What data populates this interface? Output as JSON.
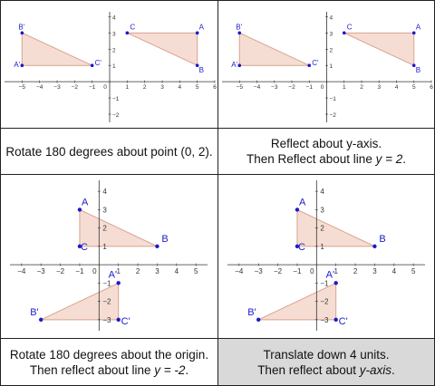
{
  "panels": [
    {
      "id": "p1",
      "xrange": [
        -6,
        6
      ],
      "yrange": [
        -2.5,
        4.3
      ],
      "xticks": [
        -5,
        -4,
        -3,
        -2,
        -1,
        0,
        1,
        2,
        3,
        4,
        5,
        6
      ],
      "yticks": [
        -2,
        -1,
        0,
        1,
        2,
        3,
        4
      ],
      "triangles": [
        {
          "name": "image",
          "points": [
            {
              "label": "B'",
              "x": -5,
              "y": 3
            },
            {
              "label": "A'",
              "x": -5,
              "y": 1
            },
            {
              "label": "C'",
              "x": -1,
              "y": 1
            }
          ]
        },
        {
          "name": "original",
          "points": [
            {
              "label": "C",
              "x": 1,
              "y": 3
            },
            {
              "label": "A",
              "x": 5,
              "y": 3
            },
            {
              "label": "B",
              "x": 5,
              "y": 1
            }
          ]
        }
      ]
    },
    {
      "id": "p2",
      "xrange": [
        -6,
        6
      ],
      "yrange": [
        -2.5,
        4.3
      ],
      "xticks": [
        -5,
        -4,
        -3,
        -2,
        -1,
        0,
        1,
        2,
        3,
        4,
        5,
        6
      ],
      "yticks": [
        -2,
        -1,
        0,
        1,
        2,
        3,
        4
      ],
      "triangles": [
        {
          "name": "image",
          "points": [
            {
              "label": "B'",
              "x": -5,
              "y": 3
            },
            {
              "label": "A'",
              "x": -5,
              "y": 1
            },
            {
              "label": "C'",
              "x": -1,
              "y": 1
            }
          ]
        },
        {
          "name": "original",
          "points": [
            {
              "label": "C",
              "x": 1,
              "y": 3
            },
            {
              "label": "A",
              "x": 5,
              "y": 3
            },
            {
              "label": "B",
              "x": 5,
              "y": 1
            }
          ]
        }
      ]
    },
    {
      "id": "p3",
      "xrange": [
        -4.6,
        5.6
      ],
      "yrange": [
        -3.6,
        4.6
      ],
      "xticks": [
        -4,
        -3,
        -2,
        -1,
        0,
        1,
        2,
        3,
        4,
        5
      ],
      "yticks": [
        -3,
        -2,
        -1,
        0,
        1,
        2,
        3,
        4
      ],
      "triangles": [
        {
          "name": "original",
          "points": [
            {
              "label": "A",
              "x": -1,
              "y": 3
            },
            {
              "label": "C",
              "x": -1,
              "y": 1
            },
            {
              "label": "B",
              "x": 3,
              "y": 1
            }
          ]
        },
        {
          "name": "image",
          "points": [
            {
              "label": "A'",
              "x": 1,
              "y": -1
            },
            {
              "label": "C'",
              "x": 1,
              "y": -3
            },
            {
              "label": "B'",
              "x": -3,
              "y": -3
            }
          ]
        }
      ]
    },
    {
      "id": "p4",
      "xrange": [
        -4.6,
        5.6
      ],
      "yrange": [
        -3.6,
        4.6
      ],
      "xticks": [
        -4,
        -3,
        -2,
        -1,
        0,
        1,
        2,
        3,
        4,
        5
      ],
      "yticks": [
        -3,
        -2,
        -1,
        0,
        1,
        2,
        3,
        4
      ],
      "triangles": [
        {
          "name": "original",
          "points": [
            {
              "label": "A",
              "x": -1,
              "y": 3
            },
            {
              "label": "C",
              "x": -1,
              "y": 1
            },
            {
              "label": "B",
              "x": 3,
              "y": 1
            }
          ]
        },
        {
          "name": "image",
          "points": [
            {
              "label": "A'",
              "x": 1,
              "y": -1
            },
            {
              "label": "C'",
              "x": 1,
              "y": -3
            },
            {
              "label": "B'",
              "x": -3,
              "y": -3
            }
          ]
        }
      ]
    }
  ],
  "captions": {
    "c1": {
      "line1": "Rotate 180 degrees about point (0, 2)."
    },
    "c2": {
      "line1": "Reflect about y-axis.",
      "line2_pre": "Then Reflect about line ",
      "line2_it": "y = 2",
      "line2_post": "."
    },
    "c3": {
      "line1": "Rotate 180 degrees about the origin.",
      "line2_pre": "Then reflect about line ",
      "line2_it": "y = -2",
      "line2_post": "."
    },
    "c4": {
      "line1": "Translate down 4 units.",
      "line2_pre": "Then reflect about ",
      "line2_it": "y-axis",
      "line2_post": "."
    }
  },
  "colors": {
    "fill": "#f6ddd3",
    "stroke": "#d9a48f",
    "point": "#1a1acc",
    "axis": "#333333"
  }
}
